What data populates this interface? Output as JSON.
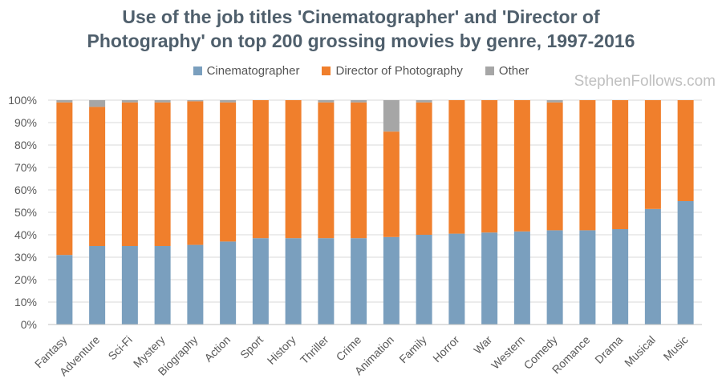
{
  "title": {
    "line1": "Use of the job titles 'Cinematographer' and 'Director of",
    "line2": "Photography' on top 200 grossing movies by genre, 1997-2016"
  },
  "watermark": "StephenFollows.com",
  "colors": {
    "cinematographer": "#7a9fbe",
    "director_of_photography": "#f07f2c",
    "other": "#a6a6a6",
    "grid": "#d9d9d9",
    "title": "#4f5f6c"
  },
  "chart_data": {
    "type": "bar",
    "stacked": true,
    "title": "Use of the job titles 'Cinematographer' and 'Director of Photography' on top 200 grossing movies by genre, 1997-2016",
    "xlabel": "",
    "ylabel": "",
    "ylim": [
      0,
      100
    ],
    "y_ticks": [
      "0%",
      "10%",
      "20%",
      "30%",
      "40%",
      "50%",
      "60%",
      "70%",
      "80%",
      "90%",
      "100%"
    ],
    "legend_position": "top",
    "grid": true,
    "categories": [
      "Fantasy",
      "Adventure",
      "Sci-Fi",
      "Mystery",
      "Biography",
      "Action",
      "Sport",
      "History",
      "Thriller",
      "Crime",
      "Animation",
      "Family",
      "Horror",
      "War",
      "Western",
      "Comedy",
      "Romance",
      "Drama",
      "Musical",
      "Music"
    ],
    "series": [
      {
        "name": "Cinematographer",
        "values": [
          31,
          35,
          35,
          35,
          35.5,
          37,
          38.5,
          38.5,
          38.5,
          38.5,
          39,
          40,
          40.5,
          41,
          41.5,
          42,
          42,
          42.5,
          51.5,
          55
        ]
      },
      {
        "name": "Director of Photography",
        "values": [
          68,
          62,
          64,
          64,
          64,
          62,
          61.5,
          61.5,
          60.5,
          60.5,
          47,
          59,
          59.5,
          59,
          58.5,
          57,
          58,
          57.5,
          48.5,
          45
        ]
      },
      {
        "name": "Other",
        "values": [
          1,
          3,
          1,
          1,
          0.5,
          1,
          0,
          0,
          1,
          1,
          14,
          1,
          0,
          0,
          0,
          1,
          0,
          0,
          0,
          0
        ]
      }
    ]
  }
}
